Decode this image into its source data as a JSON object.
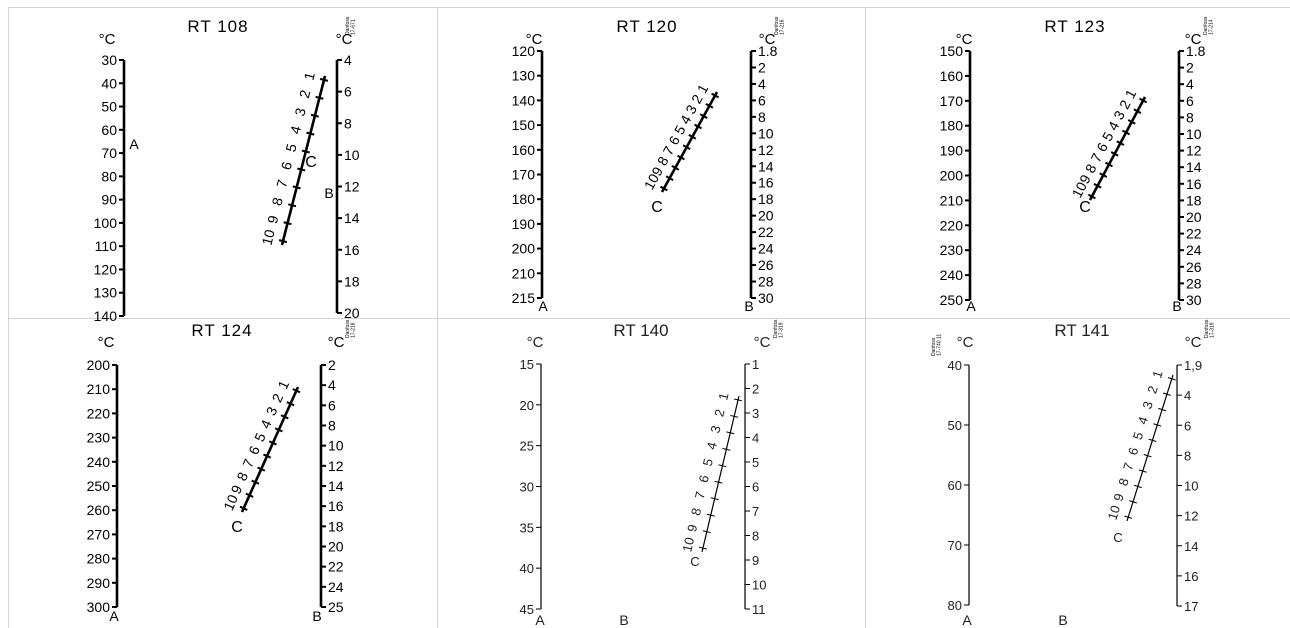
{
  "panels": [
    {
      "title": "RT  108",
      "unit_left": "°C",
      "unit_right": "°C",
      "stamp": [
        "Danfoss",
        "17-671"
      ],
      "stamp_left": null,
      "style": "bold",
      "range": {
        "ticks": [
          "30",
          "40",
          "50",
          "60",
          "70",
          "80",
          "90",
          "100",
          "110",
          "120",
          "130",
          "140"
        ],
        "label": "A"
      },
      "diff": {
        "ticks": [
          "4",
          "6",
          "8",
          "10",
          "12",
          "14",
          "16",
          "18",
          "20"
        ],
        "label": "B"
      },
      "setting": {
        "ticks": [
          "1",
          "2",
          "3",
          "4",
          "5",
          "6",
          "7",
          "8",
          "9",
          "10"
        ],
        "label": "C"
      }
    },
    {
      "title": "RT  120",
      "unit_left": "°C",
      "unit_right": "°C",
      "stamp": [
        "Danfoss",
        "17-216"
      ],
      "stamp_left": null,
      "style": "bold",
      "range": {
        "ticks": [
          "120",
          "130",
          "140",
          "150",
          "160",
          "170",
          "180",
          "190",
          "200",
          "210",
          "215"
        ],
        "label": "A"
      },
      "diff": {
        "ticks": [
          "1.8",
          "2",
          "4",
          "6",
          "8",
          "10",
          "12",
          "14",
          "16",
          "18",
          "20",
          "22",
          "24",
          "26",
          "28",
          "30"
        ],
        "label": "B"
      },
      "setting": {
        "ticks": [
          "1",
          "2",
          "3",
          "4",
          "5",
          "6",
          "7",
          "8",
          "9",
          "10"
        ],
        "label": "C"
      }
    },
    {
      "title": "RT  123",
      "unit_left": "°C",
      "unit_right": "°C",
      "stamp": [
        "Danfoss",
        "17-214"
      ],
      "stamp_left": null,
      "style": "bold",
      "range": {
        "ticks": [
          "150",
          "160",
          "170",
          "180",
          "190",
          "200",
          "210",
          "220",
          "230",
          "240",
          "250"
        ],
        "label": "A"
      },
      "diff": {
        "ticks": [
          "1.8",
          "2",
          "4",
          "6",
          "8",
          "10",
          "12",
          "14",
          "16",
          "18",
          "20",
          "22",
          "24",
          "26",
          "28",
          "30"
        ],
        "label": "B"
      },
      "setting": {
        "ticks": [
          "1",
          "2",
          "3",
          "4",
          "5",
          "6",
          "7",
          "8",
          "9",
          "10"
        ],
        "label": "C"
      }
    },
    {
      "title": "RT  124",
      "unit_left": "°C",
      "unit_right": "°C",
      "stamp": [
        "Danfoss",
        "17-218"
      ],
      "stamp_left": null,
      "style": "bold",
      "range": {
        "ticks": [
          "200",
          "210",
          "220",
          "230",
          "240",
          "250",
          "260",
          "270",
          "280",
          "290",
          "300"
        ],
        "label": "A"
      },
      "diff": {
        "ticks": [
          "2",
          "4",
          "6",
          "8",
          "10",
          "12",
          "14",
          "16",
          "18",
          "20",
          "22",
          "24",
          "25"
        ],
        "label": "B"
      },
      "setting": {
        "ticks": [
          "1",
          "2",
          "3",
          "4",
          "5",
          "6",
          "7",
          "8",
          "9",
          "10"
        ],
        "label": "C"
      }
    },
    {
      "title": "RT 140",
      "unit_left": "°C",
      "unit_right": "°C",
      "stamp": [
        "Danfoss",
        "17-319"
      ],
      "stamp_left": null,
      "style": "thin",
      "range": {
        "ticks": [
          "15",
          "20",
          "25",
          "30",
          "35",
          "40",
          "45"
        ],
        "label": "A"
      },
      "diff": {
        "ticks": [
          "1",
          "2",
          "3",
          "4",
          "5",
          "6",
          "7",
          "8",
          "9",
          "10",
          "11"
        ],
        "label": "B"
      },
      "setting": {
        "ticks": [
          "1",
          "2",
          "3",
          "4",
          "5",
          "6",
          "7",
          "8",
          "9",
          "10"
        ],
        "label": "C"
      }
    },
    {
      "title": "RT 141",
      "unit_left": "°C",
      "unit_right": "°C",
      "stamp": [
        "Danfoss",
        "17-319"
      ],
      "stamp_left": [
        "Danfoss",
        "17-740.11"
      ],
      "style": "thin",
      "range": {
        "ticks": [
          "40",
          "50",
          "60",
          "70",
          "80"
        ],
        "label": "A"
      },
      "diff": {
        "ticks": [
          "1,9",
          "4",
          "6",
          "8",
          "10",
          "12",
          "14",
          "16",
          "17"
        ],
        "label": "B"
      },
      "setting": {
        "ticks": [
          "1",
          "2",
          "3",
          "4",
          "5",
          "6",
          "7",
          "8",
          "9",
          "10"
        ],
        "label": "C"
      }
    }
  ]
}
